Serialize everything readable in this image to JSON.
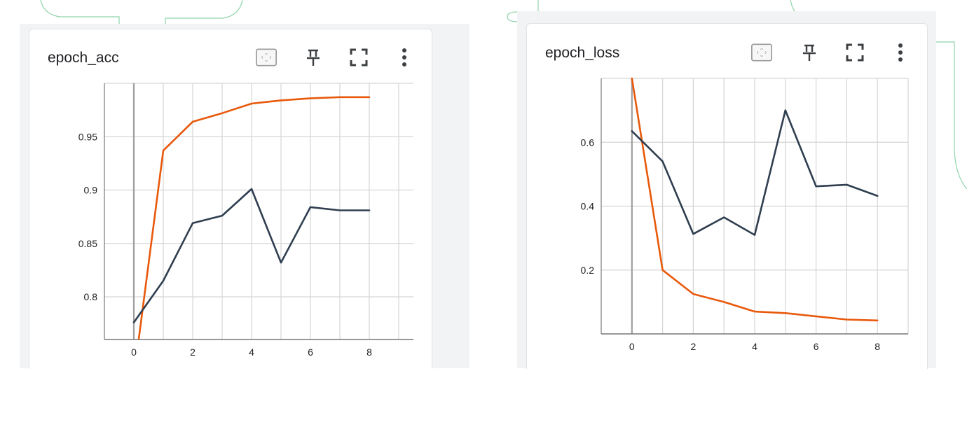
{
  "colors": {
    "train": "#e8590c",
    "validation": "#2f3e50",
    "grid": "#d5d5d5",
    "accent_outline": "#8ed3a8",
    "panel_bg": "#f1f3f4"
  },
  "icons": [
    "fit-domain-icon",
    "pin-icon",
    "fullscreen-icon",
    "more-vert-icon"
  ],
  "cards": [
    {
      "title": "epoch_acc",
      "chart_data": {
        "type": "line",
        "x": [
          0,
          1,
          2,
          3,
          4,
          5,
          6,
          7,
          8
        ],
        "series": [
          {
            "values": [
              0.725,
              0.937,
              0.964,
              0.972,
              0.981,
              0.984,
              0.986,
              0.987,
              0.987
            ],
            "color": "#e8590c"
          },
          {
            "values": [
              0.776,
              0.815,
              0.869,
              0.876,
              0.901,
              0.832,
              0.884,
              0.881,
              0.881
            ],
            "color": "#2f3e50"
          }
        ],
        "xlim": [
          -1,
          9.5
        ],
        "ylim": [
          0.76,
          1.0
        ],
        "xticks": [
          0,
          2,
          4,
          6,
          8
        ],
        "xtick_labels": [
          "0",
          "2",
          "4",
          "6",
          "8"
        ],
        "yticks": [
          0.8,
          0.85,
          0.9,
          0.95
        ],
        "ytick_labels": [
          "0.8",
          "0.85",
          "0.9",
          "0.95"
        ],
        "grid": true,
        "legend": "none"
      }
    },
    {
      "title": "epoch_loss",
      "chart_data": {
        "type": "line",
        "x": [
          0,
          1,
          2,
          3,
          4,
          5,
          6,
          7,
          8
        ],
        "series": [
          {
            "values": [
              0.8,
              0.2,
              0.125,
              0.1,
              0.07,
              0.065,
              0.055,
              0.045,
              0.042
            ],
            "color": "#e8590c"
          },
          {
            "values": [
              0.635,
              0.54,
              0.313,
              0.365,
              0.31,
              0.7,
              0.462,
              0.467,
              0.432
            ],
            "color": "#2f3e50"
          }
        ],
        "xlim": [
          -1,
          9
        ],
        "ylim": [
          0,
          0.8
        ],
        "xticks": [
          0,
          2,
          4,
          6,
          8
        ],
        "xtick_labels": [
          "0",
          "2",
          "4",
          "6",
          "8"
        ],
        "yticks": [
          0.2,
          0.4,
          0.6
        ],
        "ytick_labels": [
          "0.2",
          "0.4",
          "0.6"
        ],
        "grid": true,
        "legend": "none"
      }
    }
  ]
}
